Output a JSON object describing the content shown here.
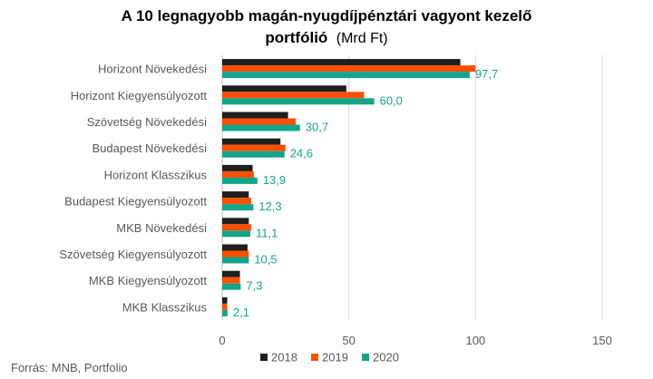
{
  "chart_data": {
    "type": "bar",
    "orientation": "horizontal",
    "title_line1": "A 10 legnagyobb magán-nyugdíjpénztári vagyont kezelő",
    "title_line2": "portfólió",
    "title_unit": "(Mrd Ft)",
    "categories": [
      "Horizont Növekedési",
      "Horizont Kiegyensúlyozott",
      "Szövetség Növekedési",
      "Budapest Növekedési",
      "Horizont  Klasszikus",
      "Budapest Kiegyensúlyozott",
      "MKB Növekedési",
      "Szövetség Kiegyensúlyozott",
      "MKB Kiegyensúlyozott",
      "MKB  Klasszikus"
    ],
    "series": [
      {
        "name": "2018",
        "color": "#1f1f1f",
        "values": [
          94,
          49,
          26,
          23,
          12,
          10.5,
          10.5,
          10,
          7,
          2
        ]
      },
      {
        "name": "2019",
        "color": "#ff4f00",
        "values": [
          100,
          56,
          29,
          25,
          12.5,
          11.5,
          11.5,
          10.5,
          7,
          2
        ]
      },
      {
        "name": "2020",
        "color": "#13a58a",
        "values": [
          97.7,
          60.0,
          30.7,
          24.6,
          13.9,
          12.3,
          11.1,
          10.5,
          7.3,
          2.1
        ]
      }
    ],
    "data_labels": [
      "97,7",
      "60,0",
      "30,7",
      "24,6",
      "13,9",
      "12,3",
      "11,1",
      "10,5",
      "7,3",
      "2,1"
    ],
    "xlim": [
      0,
      150
    ],
    "xticks": [
      "0",
      "50",
      "100",
      "150"
    ],
    "xtick_values": [
      0,
      50,
      100,
      150
    ],
    "grid": true,
    "legend_position": "bottom"
  },
  "source": "Forrás: MNB, Portfolio"
}
